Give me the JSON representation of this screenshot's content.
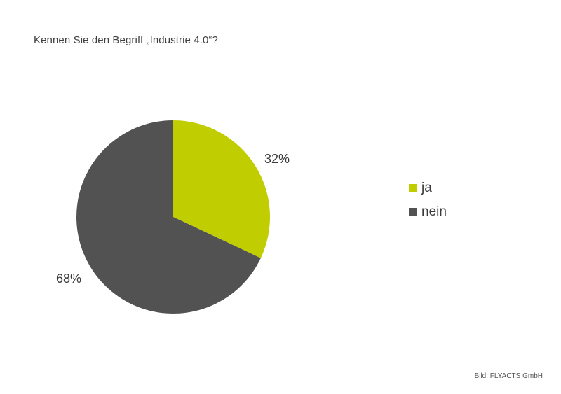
{
  "chart_data": {
    "type": "pie",
    "title": "Kennen Sie den Begriff „Industrie 4.0“?",
    "categories": [
      "ja",
      "nein"
    ],
    "values": [
      32,
      68
    ],
    "value_labels": [
      "32%",
      "68%"
    ],
    "unit": "%",
    "colors": [
      "#c0cd00",
      "#525252"
    ],
    "legend_position": "right"
  },
  "credit": "Bild: FLYACTS GmbH"
}
